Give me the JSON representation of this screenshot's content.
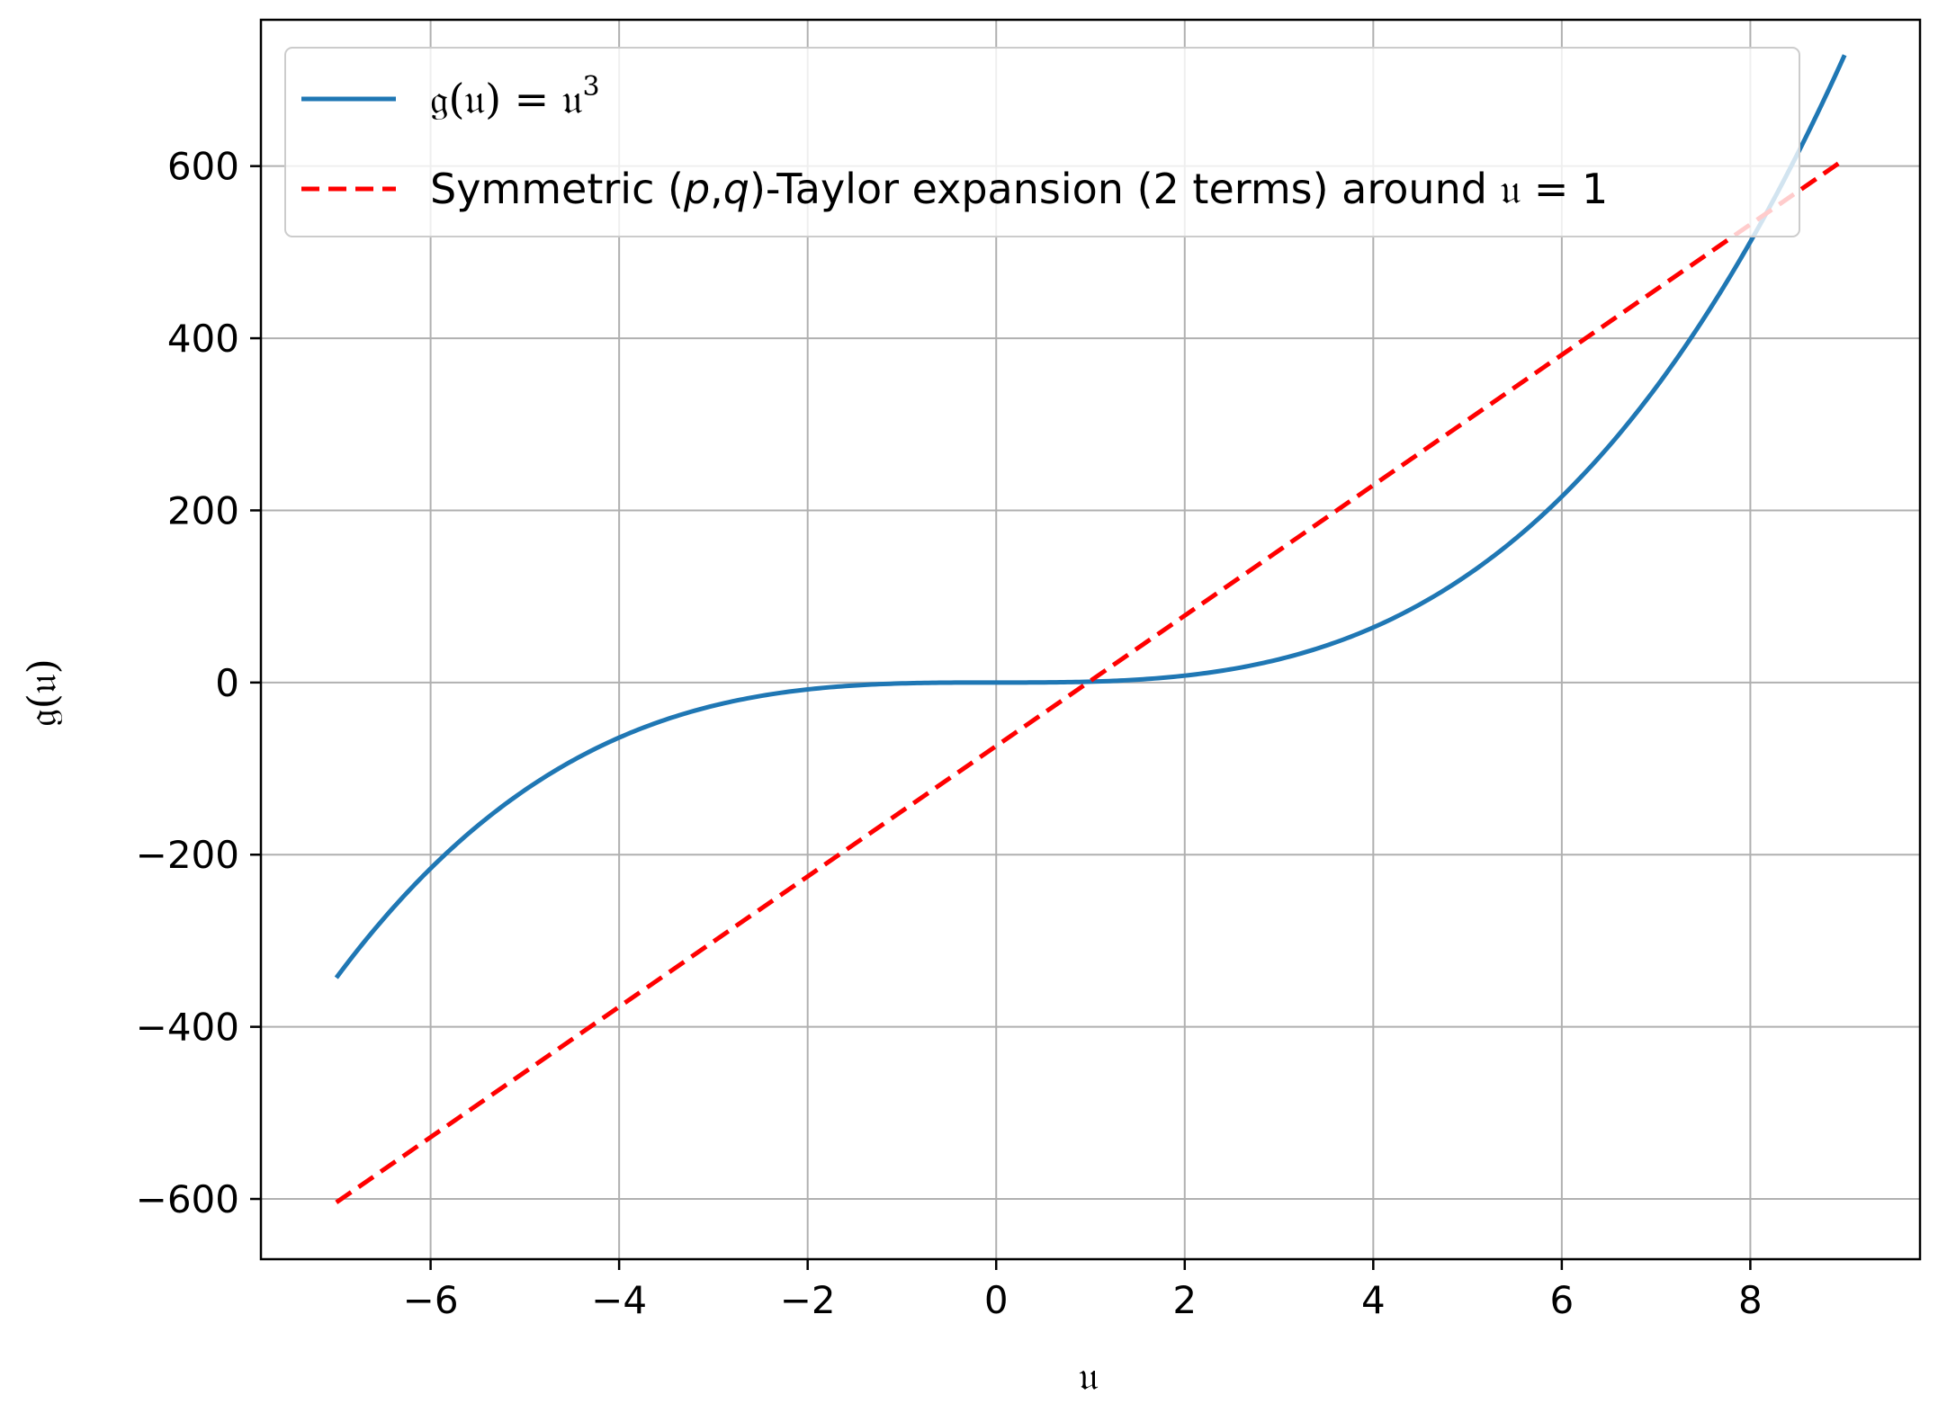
{
  "chart_data": {
    "type": "line",
    "xlabel": "𝔲",
    "ylabel": "𝔤(𝔲)",
    "xlim": [
      -7.8,
      9.8
    ],
    "ylim": [
      -670,
      770
    ],
    "x_ticks": [
      -6,
      -4,
      -2,
      0,
      2,
      4,
      6,
      8
    ],
    "x_tick_labels": [
      "−6",
      "−4",
      "−2",
      "0",
      "2",
      "4",
      "6",
      "8"
    ],
    "y_ticks": [
      -600,
      -400,
      -200,
      0,
      200,
      400,
      600
    ],
    "y_tick_labels": [
      "−600",
      "−400",
      "−200",
      "0",
      "200",
      "400",
      "600"
    ],
    "grid": true,
    "legend_position": "upper-left",
    "series": [
      {
        "name": "𝔤(𝔲) = 𝔲³",
        "legend_main": "𝔤(𝔲) = 𝔲",
        "legend_sup": "3",
        "style": "solid",
        "color": "#1f77b4",
        "x": [
          -7,
          -6.5,
          -6,
          -5.5,
          -5,
          -4.5,
          -4,
          -3.5,
          -3,
          -2.5,
          -2,
          -1.5,
          -1,
          -0.5,
          0,
          0.5,
          1,
          1.5,
          2,
          2.5,
          3,
          3.5,
          4,
          4.5,
          5,
          5.5,
          6,
          6.5,
          7,
          7.5,
          8,
          8.5,
          9
        ],
        "y": [
          -343,
          -274.6,
          -216,
          -166.4,
          -125,
          -91.1,
          -64,
          -42.9,
          -27,
          -15.6,
          -8,
          -3.4,
          -1,
          -0.1,
          0,
          0.1,
          1,
          3.4,
          8,
          15.6,
          27,
          42.9,
          64,
          91.1,
          125,
          166.4,
          216,
          274.6,
          343,
          421.9,
          512,
          614.1,
          729
        ]
      },
      {
        "name": "Symmetric (p,q)-Taylor expansion (2 terms) around 𝔲 = 1",
        "legend_prefix": "Symmetric (",
        "legend_p": "p",
        "legend_comma": ",",
        "legend_q": "q",
        "legend_suffix": ")-Taylor expansion (2 terms) around ",
        "legend_var": "𝔲",
        "legend_end": " = 1",
        "style": "dashed",
        "color": "#ff0000",
        "x": [
          -7,
          9
        ],
        "y": [
          -604,
          608
        ]
      }
    ]
  }
}
